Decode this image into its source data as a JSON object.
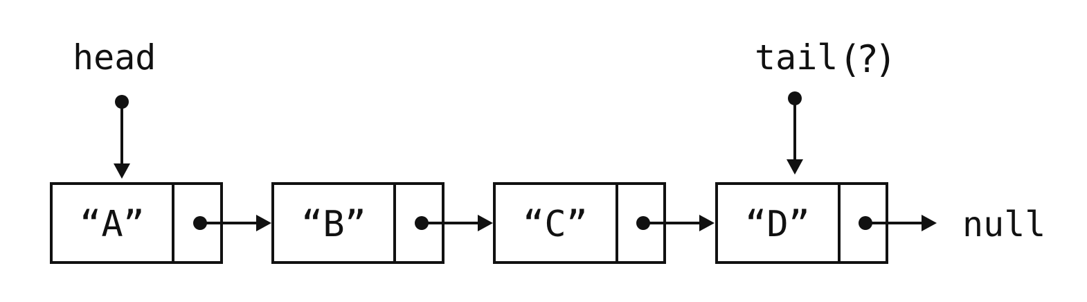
{
  "pointers": {
    "head": {
      "label": "head"
    },
    "tail": {
      "label": "tail",
      "qualifier": "(?)"
    }
  },
  "nodes": [
    {
      "value": "“A”"
    },
    {
      "value": "“B”"
    },
    {
      "value": "“C”"
    },
    {
      "value": "“D”"
    }
  ],
  "terminal": {
    "label": "null"
  }
}
